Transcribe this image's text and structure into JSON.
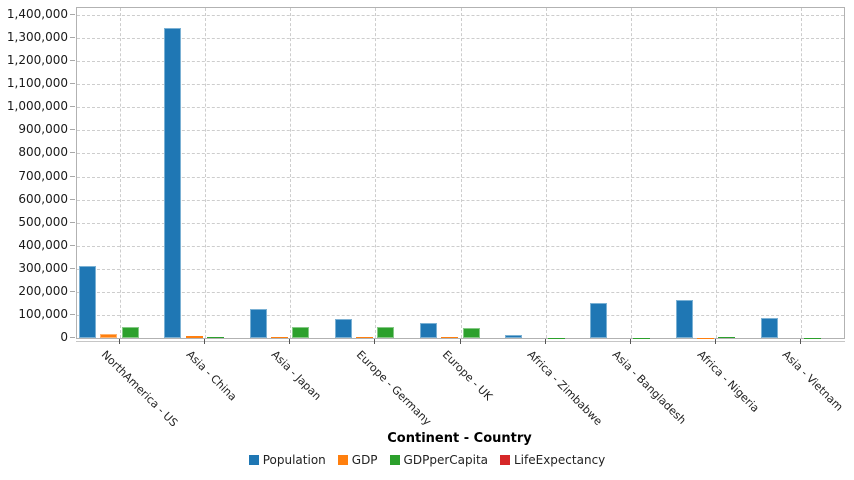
{
  "chart_data": {
    "type": "bar",
    "title": "",
    "xlabel": "Continent - Country",
    "ylabel": "",
    "ylim": [
      0,
      1400000
    ],
    "y_tick_step": 100000,
    "grid": "dashed horizontal at each y tick, dashed vertical at each category center",
    "legend_position": "bottom-center",
    "axis_border_color": "#b2b2b2",
    "grid_color": "#cdcdcd",
    "y_ticks": [
      {
        "v": 0,
        "label": "0"
      },
      {
        "v": 100000,
        "label": "100,000"
      },
      {
        "v": 200000,
        "label": "200,000"
      },
      {
        "v": 300000,
        "label": "300,000"
      },
      {
        "v": 400000,
        "label": "400,000"
      },
      {
        "v": 500000,
        "label": "500,000"
      },
      {
        "v": 600000,
        "label": "600,000"
      },
      {
        "v": 700000,
        "label": "700,000"
      },
      {
        "v": 800000,
        "label": "800,000"
      },
      {
        "v": 900000,
        "label": "900,000"
      },
      {
        "v": 1000000,
        "label": "1,000,000"
      },
      {
        "v": 1100000,
        "label": "1,100,000"
      },
      {
        "v": 1200000,
        "label": "1,200,000"
      },
      {
        "v": 1300000,
        "label": "1,300,000"
      },
      {
        "v": 1400000,
        "label": "1,400,000"
      }
    ],
    "categories": [
      "NorthAmerica - US",
      "Asia - China",
      "Asia - Japan",
      "Europe - Germany",
      "Europe - UK",
      "Africa - Zimbabwe",
      "Asia - Bangladesh",
      "Africa - Nigeria",
      "Asia - Vietnam"
    ],
    "series": [
      {
        "name": "Population",
        "color": "#1f77b4",
        "edge_color": "#7bb1d4",
        "values": [
          311580,
          1344130,
          127830,
          81800,
          63260,
          12750,
          150490,
          164190,
          87840
        ]
      },
      {
        "name": "GDP",
        "color": "#ff7f0e",
        "edge_color": "#ffb26b",
        "values": [
          15540,
          7570,
          6160,
          3740,
          2620,
          12,
          129,
          411,
          135
        ]
      },
      {
        "name": "GDPperCapita",
        "color": "#2ca02c",
        "edge_color": "#85c985",
        "values": [
          49880,
          5620,
          48170,
          45870,
          41410,
          957,
          860,
          2510,
          1540
        ]
      },
      {
        "name": "LifeExpectancy",
        "color": "#d62728",
        "edge_color": "#e79090",
        "values": [
          78.6,
          75.0,
          82.6,
          80.4,
          81.0,
          54.1,
          69.9,
          52.1,
          75.5
        ]
      }
    ]
  }
}
